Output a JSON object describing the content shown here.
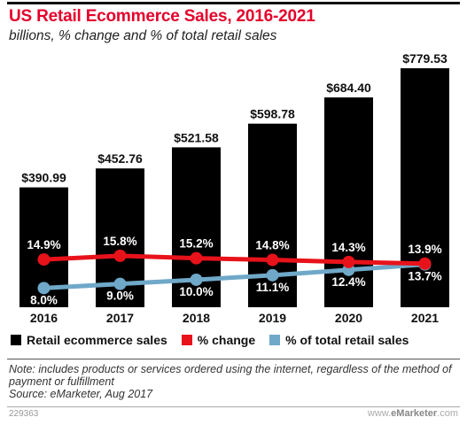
{
  "chart_data": {
    "type": "bar",
    "title": "US Retail Ecommerce Sales, 2016-2021",
    "subtitle": "billions, % change and % of total retail sales",
    "categories": [
      "2016",
      "2017",
      "2018",
      "2019",
      "2020",
      "2021"
    ],
    "bar_series": {
      "name": "Retail ecommerce sales",
      "values": [
        390.99,
        452.76,
        521.58,
        598.78,
        684.4,
        779.53
      ],
      "labels": [
        "$390.99",
        "$452.76",
        "$521.58",
        "$598.78",
        "$684.40",
        "$779.53"
      ],
      "color": "#000000"
    },
    "line_series": [
      {
        "name": "% change",
        "values": [
          14.9,
          15.8,
          15.2,
          14.8,
          14.3,
          13.9
        ],
        "labels": [
          "14.9%",
          "15.8%",
          "15.2%",
          "14.8%",
          "14.3%",
          "13.9%"
        ],
        "color": "#e8121b"
      },
      {
        "name": "% of total retail sales",
        "values": [
          8.0,
          9.0,
          10.0,
          11.1,
          12.4,
          13.7
        ],
        "labels": [
          "8.0%",
          "9.0%",
          "10.0%",
          "11.1%",
          "12.4%",
          "13.7%"
        ],
        "color": "#6fa8c8"
      }
    ],
    "ylim": [
      0,
      800
    ],
    "grid": false,
    "legend_position": "bottom"
  },
  "note": "Note: includes products or services ordered using the internet, regardless of the method of payment or fulfillment",
  "source": "Source: eMarketer, Aug 2017",
  "footer_id": "229363",
  "brand": {
    "prefix": "www.",
    "name": "eMarketer",
    "suffix": ".com"
  }
}
